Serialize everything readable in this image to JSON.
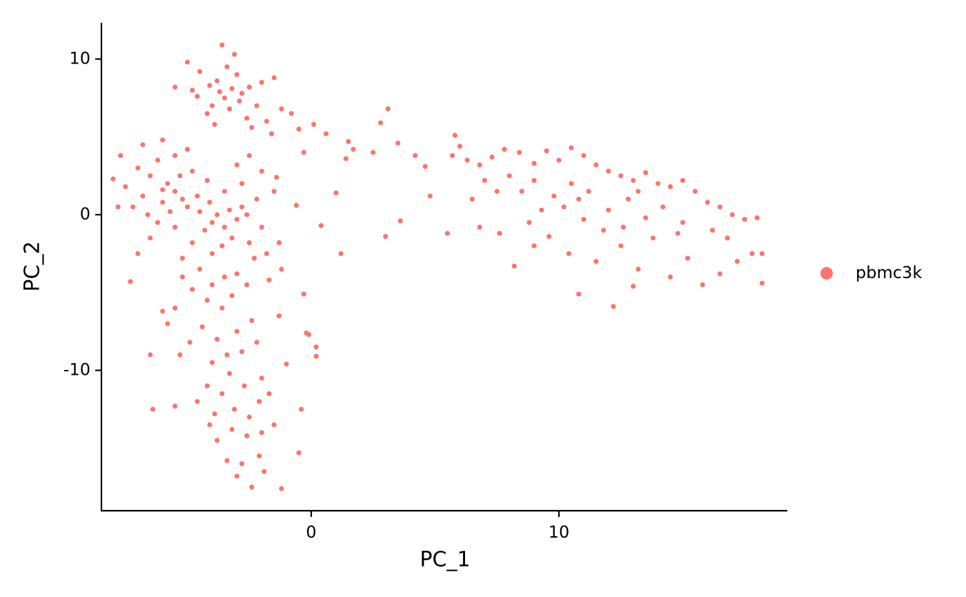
{
  "chart_data": {
    "type": "scatter",
    "xlabel": "PC_1",
    "ylabel": "PC_2",
    "xlim": [
      -8.47,
      19.22
    ],
    "ylim": [
      -19.02,
      12.33
    ],
    "xticks": [
      0,
      10
    ],
    "yticks": [
      -10,
      0,
      10
    ],
    "grid": false,
    "legend": "right",
    "series": [
      {
        "name": "pbmc3k",
        "color": "#F8766D",
        "x": [
          -3.5,
          -3.2,
          -4.0,
          -2.8,
          -3.8,
          -4.5,
          -3.0,
          -2.5,
          -4.2,
          -3.3,
          -2.2,
          -1.8,
          -4.8,
          -3.6,
          -3.1,
          -5.0,
          -2.0,
          -1.5,
          -3.9,
          -2.6,
          -4.6,
          -3.4,
          -2.9,
          -5.5,
          -1.2,
          -0.8,
          -1.6,
          -2.4,
          -4.1,
          -3.7,
          -0.5,
          0.1,
          -0.3,
          0.6,
          1.5,
          1.7,
          1.4,
          2.5,
          3.1,
          2.8,
          3.5,
          4.2,
          4.6,
          1.0,
          0.4,
          -0.6,
          1.2,
          3.0,
          3.6,
          5.5,
          4.8,
          -0.3,
          -0.1,
          0.2,
          0.2,
          -1.0,
          -0.4,
          -0.5,
          -1.2,
          -0.2,
          -5.5,
          -5.2,
          -5.8,
          -6.0,
          -5.0,
          -4.5,
          -4.0,
          -3.5,
          -3.8,
          -4.3,
          -3.2,
          -3.0,
          -2.8,
          -2.5,
          -6.5,
          -6.8,
          -7.2,
          -7.0,
          -6.2,
          -5.5,
          -4.8,
          -4.2,
          -3.5,
          -2.8,
          -2.2,
          -2.0,
          -1.8,
          -2.3,
          -4.0,
          -4.8,
          -5.5,
          -6.2,
          -7.5,
          -8.0,
          -7.8,
          -6.5,
          -5.2,
          -3.6,
          -2.6,
          -1.5,
          -1.4,
          -1.3,
          -1.2,
          -1.7,
          -6.0,
          -5.3,
          -4.6,
          -4.1,
          -3.3,
          -5.7,
          -6.6,
          -7.0,
          -7.3,
          -6.8,
          -6.0,
          -5.0,
          -3.0,
          -2.5,
          -2.0,
          -7.7,
          -4.5,
          -4.0,
          -3.5,
          -3.0,
          -4.8,
          -5.2,
          -5.5,
          -4.2,
          -3.6,
          -3.2,
          -2.6,
          -2.4,
          -3.0,
          -3.8,
          -4.4,
          -4.9,
          -5.3,
          -4.0,
          -3.4,
          -2.8,
          -2.2,
          -2.0,
          -2.7,
          -3.3,
          -3.6,
          -4.2,
          -4.6,
          -3.9,
          -3.1,
          -2.5,
          -2.1,
          -1.7,
          -1.5,
          -2.0,
          -2.6,
          -3.2,
          -3.8,
          -4.1,
          -3.4,
          -2.8,
          -2.1,
          -1.9,
          -2.4,
          -3.0,
          -5.5,
          -6.4,
          -6.5,
          -6.0,
          -5.8,
          -1.3,
          5.8,
          6.0,
          5.7,
          6.3,
          6.8,
          7.3,
          7.8,
          8.4,
          9.0,
          9.5,
          10.0,
          10.5,
          11.0,
          11.5,
          12.0,
          12.5,
          13.0,
          13.5,
          14.0,
          14.5,
          15.0,
          15.5,
          16.0,
          16.5,
          17.0,
          17.5,
          18.0,
          16.2,
          15.0,
          14.2,
          13.5,
          12.8,
          12.0,
          11.2,
          10.5,
          9.8,
          9.0,
          8.5,
          8.0,
          7.5,
          7.0,
          6.5,
          6.8,
          7.6,
          8.2,
          9.0,
          9.6,
          10.4,
          10.8,
          11.5,
          12.2,
          12.5,
          13.2,
          13.8,
          14.5,
          15.2,
          15.8,
          16.5,
          17.2,
          17.8,
          18.2,
          18.2,
          14.8,
          13.0,
          11.8,
          10.2,
          11.0,
          12.6,
          9.3,
          8.8,
          13.2,
          10.8,
          16.8
        ],
        "y": [
          7.5,
          8.1,
          7.0,
          7.8,
          8.6,
          9.2,
          9.0,
          8.2,
          6.5,
          6.8,
          7.0,
          6.0,
          8.0,
          10.9,
          10.3,
          9.8,
          8.5,
          8.8,
          5.8,
          6.2,
          7.6,
          9.5,
          7.3,
          8.2,
          6.8,
          6.5,
          5.2,
          5.6,
          8.3,
          7.9,
          5.5,
          5.8,
          4.0,
          5.2,
          4.7,
          4.2,
          3.6,
          4.0,
          6.8,
          5.9,
          4.6,
          3.8,
          3.1,
          1.4,
          -0.7,
          0.6,
          -2.5,
          -1.4,
          -0.4,
          -1.2,
          1.2,
          -5.1,
          -7.7,
          -8.5,
          -9.1,
          -9.6,
          -12.5,
          -15.3,
          -17.6,
          -7.6,
          1.5,
          1.0,
          2.0,
          0.8,
          0.5,
          0.2,
          -0.5,
          -0.8,
          0.0,
          -1.0,
          -1.5,
          -0.3,
          0.5,
          -1.8,
          2.5,
          1.2,
          0.5,
          3.0,
          3.5,
          3.8,
          2.8,
          2.2,
          1.5,
          2.0,
          1.0,
          -0.8,
          -2.5,
          -2.8,
          -2.5,
          -1.8,
          -0.8,
          -0.5,
          1.8,
          2.3,
          0.5,
          -1.5,
          -2.8,
          -2.0,
          0.0,
          1.5,
          2.4,
          -1.8,
          -3.5,
          -4.2,
          1.6,
          2.5,
          1.2,
          0.8,
          0.3,
          0.2,
          0.0,
          -2.5,
          -4.3,
          4.5,
          4.8,
          4.2,
          3.2,
          3.8,
          2.8,
          3.8,
          -3.5,
          -4.5,
          -4.0,
          -3.8,
          -4.8,
          -4.0,
          -6.0,
          -5.5,
          -6.0,
          -5.2,
          -4.5,
          -6.8,
          -7.5,
          -8.0,
          -7.2,
          -8.2,
          -9.0,
          -9.5,
          -9.0,
          -8.8,
          -8.2,
          -10.5,
          -11.0,
          -10.2,
          -11.5,
          -11.0,
          -12.0,
          -12.8,
          -12.5,
          -13.0,
          -12.0,
          -11.5,
          -13.5,
          -14.0,
          -14.2,
          -13.8,
          -14.5,
          -13.5,
          -15.8,
          -16.0,
          -15.5,
          -16.5,
          -17.5,
          -16.8,
          -12.3,
          -12.5,
          -9.0,
          -6.2,
          -7.0,
          -6.5,
          5.1,
          4.4,
          3.8,
          3.5,
          3.2,
          3.7,
          4.2,
          4.0,
          3.3,
          4.1,
          3.5,
          4.3,
          3.8,
          3.2,
          2.8,
          2.5,
          2.2,
          2.7,
          2.0,
          1.8,
          2.2,
          1.5,
          0.8,
          0.5,
          0.0,
          -0.3,
          -0.2,
          -1.0,
          -0.5,
          0.5,
          -0.2,
          1.0,
          0.3,
          1.5,
          2.0,
          1.2,
          2.2,
          1.5,
          2.5,
          1.5,
          2.2,
          1.0,
          -0.8,
          -1.2,
          -3.3,
          -2.0,
          -1.4,
          -2.5,
          -5.1,
          -3.0,
          -5.9,
          -2.0,
          -3.5,
          -1.5,
          -4.0,
          -2.8,
          -4.5,
          -3.8,
          -3.0,
          -2.5,
          -2.5,
          -4.4,
          -1.2,
          -4.6,
          -1.0,
          0.5,
          -0.3,
          -0.8,
          0.3,
          -0.5,
          1.5,
          1.0,
          -1.5
        ]
      }
    ]
  }
}
